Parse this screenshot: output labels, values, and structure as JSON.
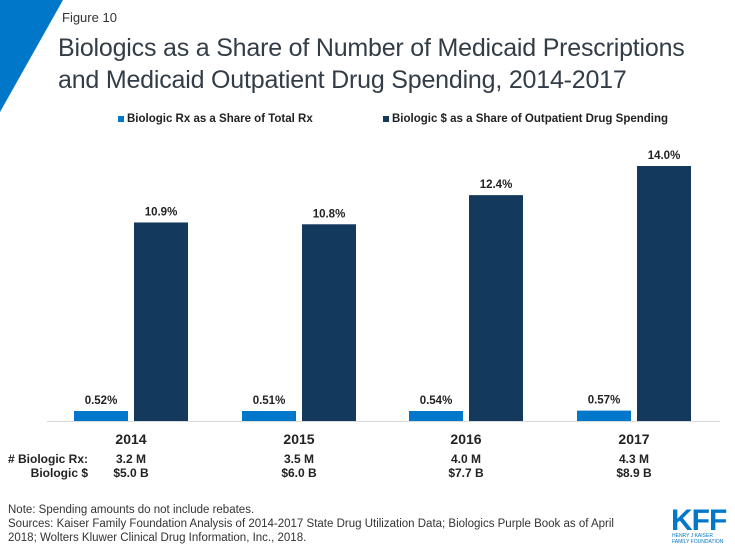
{
  "header": {
    "figure_label": "Figure 10",
    "title_line1": "Biologics as a Share of Number of Medicaid Prescriptions",
    "title_line2": "and Medicaid Outpatient Drug Spending, 2014-2017"
  },
  "colors": {
    "accent": "#0077c8",
    "series1": "#0077c8",
    "series2": "#133a5c",
    "axis": "#d9d9d9"
  },
  "chart_data": {
    "type": "bar",
    "title": "Biologics as a Share of Number of Medicaid Prescriptions and Medicaid Outpatient Drug Spending, 2014-2017",
    "categories": [
      "2014",
      "2015",
      "2016",
      "2017"
    ],
    "series": [
      {
        "name": "Biologic Rx as a Share of Total Rx",
        "values": [
          0.52,
          0.51,
          0.54,
          0.57
        ],
        "labels": [
          "0.52%",
          "0.51%",
          "0.54%",
          "0.57%"
        ]
      },
      {
        "name": "Biologic $ as a Share of Outpatient Drug Spending",
        "values": [
          10.9,
          10.8,
          12.4,
          14.0
        ],
        "labels": [
          "10.9%",
          "10.8%",
          "12.4%",
          "14.0%"
        ]
      }
    ],
    "xlabel": "",
    "ylabel": "",
    "ylim": [
      0,
      14
    ],
    "grid": false,
    "legend": "top-center",
    "unit": "%"
  },
  "stats_table": {
    "row_labels": [
      "# Biologic Rx:",
      "Biologic $"
    ],
    "rows": [
      [
        "3.2 M",
        "3.5 M",
        "4.0 M",
        "4.3 M"
      ],
      [
        "$5.0 B",
        "$6.0 B",
        "$7.7 B",
        "$8.9 B"
      ]
    ]
  },
  "footer": {
    "note": "Note: Spending amounts do not include rebates.",
    "sources_line1": "Sources: Kaiser Family Foundation Analysis of 2014-2017 State Drug Utilization Data; Biologics Purple Book as of April",
    "sources_line2": "2018; Wolters Kluwer Clinical Drug Information, Inc., 2018."
  },
  "logo": {
    "wordmark": "KFF",
    "subtitle_line1": "HENRY J KAISER",
    "subtitle_line2": "FAMILY FOUNDATION"
  }
}
